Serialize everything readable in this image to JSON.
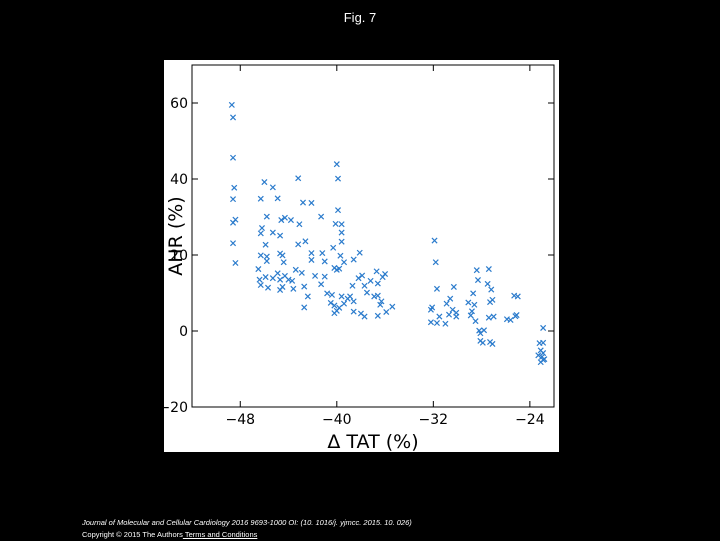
{
  "page": {
    "title": "Fig. 7",
    "citation_journal": "Journal of Molecular and Cellular Cardiology 2016 9693-1000 OI: (10. 1016/j. yjmcc. 2015. 10. 026)",
    "copyright": "Copyright © 2015 The Authors",
    "terms_link": " Terms and Conditions"
  },
  "chart_data": {
    "type": "scatter",
    "title": "",
    "xlabel": "Δ TAT (%)",
    "ylabel": "AHR (%)",
    "xlim": [
      -52,
      -22
    ],
    "ylim": [
      -20,
      70
    ],
    "xticks": [
      -48,
      -40,
      -32,
      -24
    ],
    "yticks": [
      -20,
      0,
      20,
      40,
      60
    ],
    "xtick_labels": [
      "−48",
      "−40",
      "−32",
      "−24"
    ],
    "ytick_labels": [
      "−20",
      "0",
      "20",
      "40",
      "60"
    ],
    "grid": false,
    "marker": "x",
    "color": "#2b7bcc",
    "points": [
      [
        -48.7,
        59.5
      ],
      [
        -48.6,
        56.2
      ],
      [
        -48.6,
        45.6
      ],
      [
        -48.5,
        37.7
      ],
      [
        -48.6,
        34.7
      ],
      [
        -48.4,
        29.3
      ],
      [
        -48.6,
        28.5
      ],
      [
        -48.6,
        23.1
      ],
      [
        -48.4,
        17.9
      ],
      [
        -46.3,
        34.8
      ],
      [
        -46.0,
        39.2
      ],
      [
        -45.3,
        37.8
      ],
      [
        -44.9,
        34.9
      ],
      [
        -44.3,
        29.8
      ],
      [
        -44.6,
        29.2
      ],
      [
        -43.8,
        29.2
      ],
      [
        -43.2,
        40.2
      ],
      [
        -43.1,
        28.1
      ],
      [
        -42.8,
        33.8
      ],
      [
        -42.1,
        33.7
      ],
      [
        -41.3,
        30.1
      ],
      [
        -40.0,
        43.9
      ],
      [
        -39.9,
        40.1
      ],
      [
        -39.9,
        31.8
      ],
      [
        -40.1,
        28.2
      ],
      [
        -39.6,
        28.1
      ],
      [
        -39.6,
        25.9
      ],
      [
        -46.2,
        27.1
      ],
      [
        -46.3,
        25.7
      ],
      [
        -45.8,
        30.1
      ],
      [
        -45.3,
        25.9
      ],
      [
        -44.7,
        25.1
      ],
      [
        -45.9,
        22.7
      ],
      [
        -45.8,
        19.6
      ],
      [
        -46.3,
        19.9
      ],
      [
        -45.8,
        18.4
      ],
      [
        -44.7,
        20.4
      ],
      [
        -44.5,
        19.9
      ],
      [
        -44.4,
        18.1
      ],
      [
        -43.2,
        22.8
      ],
      [
        -42.6,
        23.6
      ],
      [
        -42.1,
        20.5
      ],
      [
        -42.1,
        18.7
      ],
      [
        -41.2,
        20.5
      ],
      [
        -41.0,
        18.3
      ],
      [
        -40.3,
        21.9
      ],
      [
        -39.6,
        23.5
      ],
      [
        -39.7,
        19.8
      ],
      [
        -39.4,
        18.1
      ],
      [
        -40.2,
        16.6
      ],
      [
        -40.0,
        16.1
      ],
      [
        -39.8,
        16.4
      ],
      [
        -38.1,
        20.6
      ],
      [
        -38.6,
        18.8
      ],
      [
        -46.5,
        16.3
      ],
      [
        -45.9,
        14.2
      ],
      [
        -46.4,
        13.5
      ],
      [
        -46.3,
        12.1
      ],
      [
        -45.7,
        11.4
      ],
      [
        -45.3,
        13.9
      ],
      [
        -44.9,
        15.2
      ],
      [
        -44.7,
        13.5
      ],
      [
        -44.5,
        11.6
      ],
      [
        -44.7,
        10.8
      ],
      [
        -44.3,
        14.5
      ],
      [
        -44.0,
        13.5
      ],
      [
        -43.7,
        13.2
      ],
      [
        -43.6,
        11.1
      ],
      [
        -43.4,
        16.1
      ],
      [
        -42.9,
        15.3
      ],
      [
        -42.7,
        11.7
      ],
      [
        -42.4,
        9.1
      ],
      [
        -42.7,
        6.2
      ],
      [
        -41.8,
        14.5
      ],
      [
        -41.3,
        12.3
      ],
      [
        -41.0,
        14.3
      ],
      [
        -40.8,
        9.9
      ],
      [
        -40.4,
        9.5
      ],
      [
        -40.5,
        7.4
      ],
      [
        -40.2,
        6.7
      ],
      [
        -40.0,
        5.3
      ],
      [
        -40.2,
        4.7
      ],
      [
        -39.8,
        6.1
      ],
      [
        -39.6,
        9.1
      ],
      [
        -39.4,
        7.2
      ],
      [
        -39.1,
        8.5
      ],
      [
        -38.7,
        11.9
      ],
      [
        -38.9,
        9.1
      ],
      [
        -38.6,
        7.8
      ],
      [
        -38.2,
        13.9
      ],
      [
        -37.9,
        14.6
      ],
      [
        -37.7,
        11.9
      ],
      [
        -37.5,
        10.1
      ],
      [
        -37.2,
        13.2
      ],
      [
        -36.7,
        15.7
      ],
      [
        -36.6,
        12.5
      ],
      [
        -36.2,
        14.2
      ],
      [
        -36.0,
        15.0
      ],
      [
        -36.9,
        9.1
      ],
      [
        -36.6,
        9.3
      ],
      [
        -36.3,
        7.8
      ],
      [
        -36.6,
        4.0
      ],
      [
        -37.7,
        3.8
      ],
      [
        -38.0,
        4.6
      ],
      [
        -38.6,
        5.1
      ],
      [
        -35.9,
        5.0
      ],
      [
        -35.4,
        6.4
      ],
      [
        -36.4,
        6.9
      ],
      [
        -31.9,
        23.8
      ],
      [
        -31.8,
        18.1
      ],
      [
        -31.7,
        11.1
      ],
      [
        -32.1,
        6.2
      ],
      [
        -32.2,
        5.6
      ],
      [
        -31.5,
        3.8
      ],
      [
        -31.7,
        2.1
      ],
      [
        -32.2,
        2.3
      ],
      [
        -31.0,
        1.9
      ],
      [
        -30.3,
        11.6
      ],
      [
        -30.6,
        8.5
      ],
      [
        -30.9,
        7.2
      ],
      [
        -30.4,
        5.6
      ],
      [
        -30.1,
        4.8
      ],
      [
        -30.7,
        4.3
      ],
      [
        -30.1,
        3.8
      ],
      [
        -28.7,
        9.9
      ],
      [
        -29.1,
        7.5
      ],
      [
        -28.6,
        6.9
      ],
      [
        -28.8,
        5.2
      ],
      [
        -28.9,
        4.1
      ],
      [
        -28.5,
        2.6
      ],
      [
        -28.4,
        16.0
      ],
      [
        -28.3,
        13.4
      ],
      [
        -27.4,
        16.3
      ],
      [
        -27.5,
        12.4
      ],
      [
        -27.2,
        10.9
      ],
      [
        -27.1,
        8.2
      ],
      [
        -27.3,
        7.6
      ],
      [
        -28.2,
        0.1
      ],
      [
        -28.1,
        -0.6
      ],
      [
        -27.8,
        0.2
      ],
      [
        -28.1,
        -2.6
      ],
      [
        -27.9,
        -3.1
      ],
      [
        -27.1,
        -3.4
      ],
      [
        -27.3,
        -2.9
      ],
      [
        -27.0,
        3.8
      ],
      [
        -27.4,
        3.5
      ],
      [
        -25.9,
        3.1
      ],
      [
        -25.6,
        2.9
      ],
      [
        -25.3,
        9.3
      ],
      [
        -25.0,
        9.1
      ],
      [
        -25.1,
        4.2
      ],
      [
        -25.2,
        3.9
      ],
      [
        -22.9,
        0.8
      ],
      [
        -23.2,
        -3.2
      ],
      [
        -22.9,
        -3.1
      ],
      [
        -23.1,
        -5.1
      ],
      [
        -22.9,
        -5.8
      ],
      [
        -23.3,
        -6.4
      ],
      [
        -23.0,
        -6.8
      ],
      [
        -22.8,
        -7.4
      ],
      [
        -23.1,
        -8.2
      ],
      [
        -22.9,
        -7.6
      ]
    ]
  }
}
